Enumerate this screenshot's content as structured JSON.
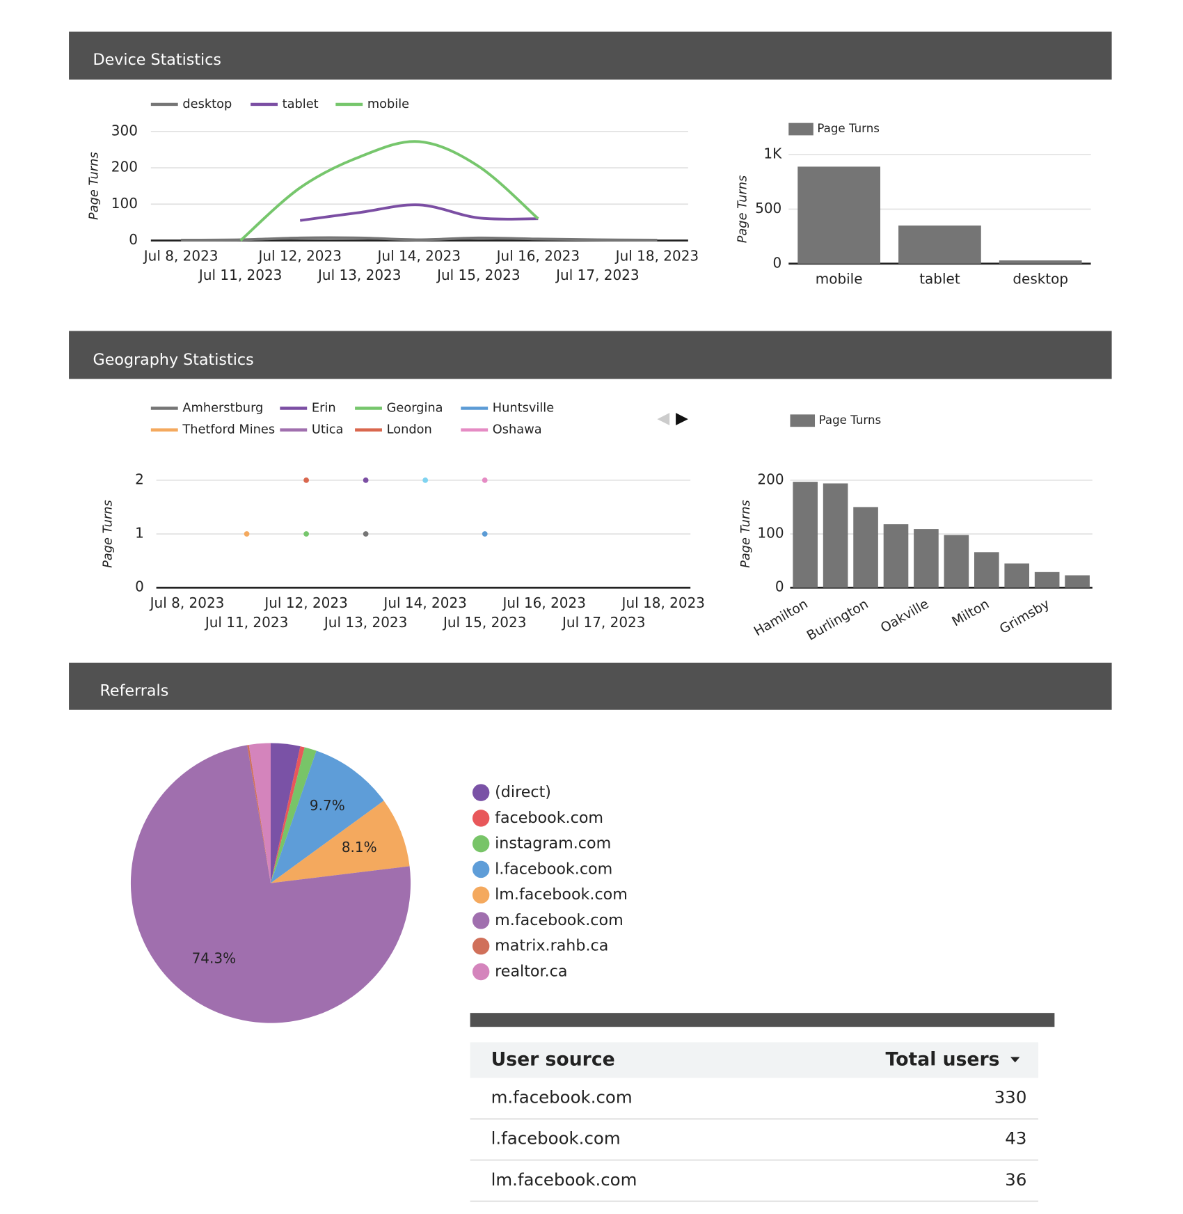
{
  "sections": [
    "Device Statistics",
    "Geography Statistics",
    "Referrals"
  ],
  "chart_data": [
    {
      "type": "line",
      "ylabel": "Page Turns",
      "categories": [
        "Jul 8, 2023",
        "Jul 11, 2023",
        "Jul 12, 2023",
        "Jul 13, 2023",
        "Jul 14, 2023",
        "Jul 15, 2023",
        "Jul 16, 2023",
        "Jul 17, 2023",
        "Jul 18, 2023"
      ],
      "series": [
        {
          "name": "desktop",
          "color": "#757575",
          "values": [
            1,
            2,
            7,
            7,
            2,
            7,
            4,
            2,
            1
          ]
        },
        {
          "name": "tablet",
          "color": "#7b4ea3",
          "values": [
            null,
            null,
            55,
            77,
            98,
            62,
            60,
            null,
            null
          ]
        },
        {
          "name": "mobile",
          "color": "#76c66c",
          "values": [
            null,
            0,
            145,
            230,
            272,
            204,
            60,
            null,
            null
          ]
        }
      ],
      "ylim": [
        0,
        300
      ],
      "yticks": [
        0,
        100,
        200,
        300
      ],
      "grid": true
    },
    {
      "type": "bar",
      "ylabel": "Page Turns",
      "categories": [
        "mobile",
        "tablet",
        "desktop"
      ],
      "series": [
        {
          "name": "Page Turns",
          "color": "#757575",
          "values": [
            890,
            350,
            30
          ]
        }
      ],
      "ylim": [
        0,
        1000
      ],
      "yticks": [
        0,
        500,
        {
          "value": 1000,
          "label": "1K"
        }
      ],
      "grid": true
    },
    {
      "type": "line",
      "ylabel": "Page Turns",
      "categories": [
        "Jul 8, 2023",
        "Jul 11, 2023",
        "Jul 12, 2023",
        "Jul 13, 2023",
        "Jul 14, 2023",
        "Jul 15, 2023",
        "Jul 16, 2023",
        "Jul 17, 2023",
        "Jul 18, 2023"
      ],
      "series": [
        {
          "name": "Amherstburg",
          "color": "#757575",
          "values": [
            null,
            null,
            null,
            1,
            null,
            null,
            null,
            null,
            null
          ]
        },
        {
          "name": "Erin",
          "color": "#7b4ea3",
          "values": [
            null,
            null,
            null,
            2,
            null,
            null,
            null,
            null,
            null
          ]
        },
        {
          "name": "Georgina",
          "color": "#76c66c",
          "values": [
            null,
            null,
            1,
            null,
            null,
            null,
            null,
            null,
            null
          ]
        },
        {
          "name": "Huntsville",
          "color": "#5b9bd5",
          "values": [
            null,
            null,
            null,
            null,
            null,
            1,
            null,
            null,
            null
          ]
        },
        {
          "name": "Thetford Mines",
          "color": "#f4a95e",
          "values": [
            null,
            1,
            null,
            null,
            null,
            null,
            null,
            null,
            null
          ]
        },
        {
          "name": "Utica",
          "color": "#a06fae",
          "values": [
            null,
            null,
            null,
            null,
            null,
            null,
            null,
            null,
            null
          ]
        },
        {
          "name": "London",
          "color": "#d9674e",
          "values": [
            null,
            null,
            2,
            null,
            null,
            null,
            null,
            null,
            null
          ]
        },
        {
          "name": "Oshawa",
          "color": "#e58bc4",
          "values": [
            null,
            null,
            null,
            null,
            null,
            2,
            null,
            null,
            null
          ]
        },
        {
          "color": "#7fd3f0",
          "values": [
            null,
            null,
            null,
            null,
            2,
            null,
            null,
            null,
            null
          ]
        }
      ],
      "ylim": [
        0,
        2
      ],
      "yticks": [
        0,
        1,
        2
      ],
      "grid": true
    },
    {
      "type": "bar",
      "ylabel": "Page Turns",
      "categories": [
        "Hamilton",
        null,
        "Burlington",
        null,
        "Oakville",
        null,
        "Milton",
        null,
        "Grimsby",
        null
      ],
      "series": [
        {
          "name": "Page Turns",
          "color": "#757575",
          "values": [
            197,
            194,
            150,
            118,
            109,
            98,
            66,
            45,
            29,
            23
          ]
        }
      ],
      "ylim": [
        0,
        200
      ],
      "yticks": [
        0,
        100,
        200
      ],
      "grid": true
    },
    {
      "type": "pie",
      "categories": [
        "(direct)",
        "facebook.com",
        "instagram.com",
        "l.facebook.com",
        "lm.facebook.com",
        "m.facebook.com",
        "matrix.rahb.ca",
        "realtor.ca"
      ],
      "values": [
        3.4,
        0.5,
        1.4,
        9.7,
        8.1,
        74.3,
        0.2,
        2.5
      ],
      "value_labels": [
        null,
        null,
        null,
        "9.7%",
        "8.1%",
        "74.3%",
        null,
        null
      ],
      "colors": [
        "#7a52a6",
        "#e8575a",
        "#78c468",
        "#5e9dd8",
        "#f4a95e",
        "#a06fae",
        "#d0705a",
        "#d484bc"
      ]
    }
  ],
  "table": {
    "columns": [
      "User source",
      "Total users"
    ],
    "rows": [
      [
        "m.facebook.com",
        330
      ],
      [
        "l.facebook.com",
        43
      ],
      [
        "lm.facebook.com",
        36
      ]
    ]
  }
}
